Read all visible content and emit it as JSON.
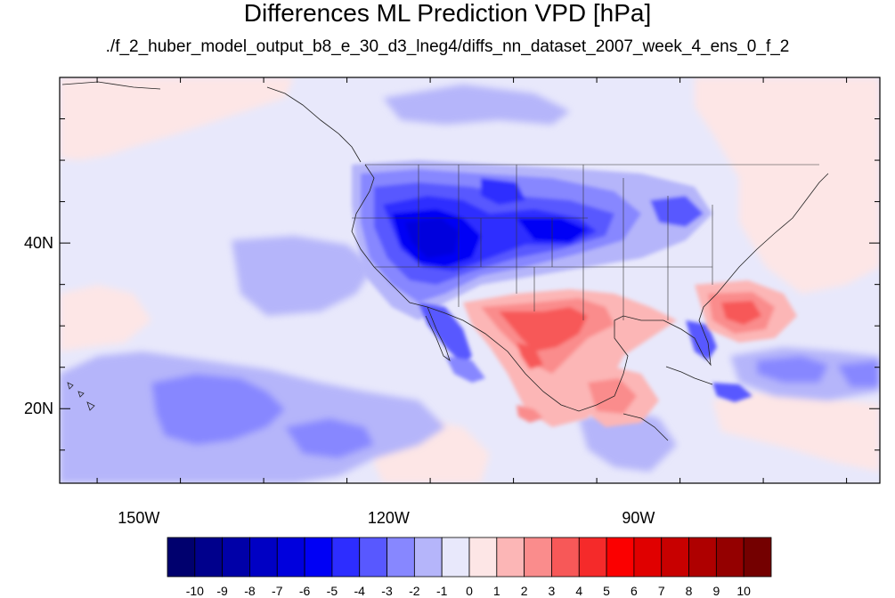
{
  "title": "Differences ML Prediction VPD [hPa]",
  "subtitle": "./f_2_huber_model_output_b8_e_30_d3_lneg4/diffs_nn_dataset_2007_week_4_ens_0_f_2",
  "map": {
    "projection": "cylindrical equidistant",
    "lon_range": [
      -159.5,
      -61
    ],
    "lat_range": [
      11,
      60
    ],
    "lat_labels": [
      {
        "value": 40,
        "text": "40N"
      },
      {
        "value": 20,
        "text": "20N"
      }
    ],
    "lon_labels": [
      {
        "value": -150,
        "text": "150W"
      },
      {
        "value": -120,
        "text": "120W"
      },
      {
        "value": -90,
        "text": "90W"
      }
    ],
    "background_value": -1,
    "colors": {
      "strong_negative": "#0000a8",
      "neutral": "#e8e8fb",
      "strong_positive": "#c80000"
    }
  },
  "colorbar": {
    "levels": [
      "-10",
      "-9",
      "-8",
      "-7",
      "-6",
      "-5",
      "-4",
      "-3",
      "-2",
      "-1",
      "0",
      "1",
      "2",
      "3",
      "4",
      "5",
      "6",
      "7",
      "8",
      "9",
      "10"
    ],
    "colors": [
      "#00006e",
      "#00008c",
      "#0000a8",
      "#0000c4",
      "#0000dd",
      "#0000f5",
      "#2d2dff",
      "#5858ff",
      "#8787ff",
      "#b5b5fa",
      "#e8e8fb",
      "#fde6e6",
      "#fcb6b6",
      "#fa8c8c",
      "#f75858",
      "#f52a2a",
      "#fb0000",
      "#e00000",
      "#c80000",
      "#ae0000",
      "#940000",
      "#740000"
    ]
  }
}
